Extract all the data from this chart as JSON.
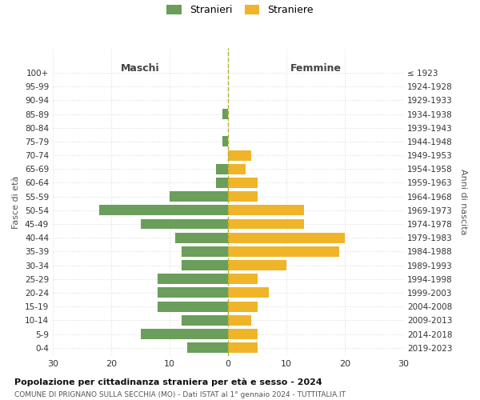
{
  "age_groups": [
    "0-4",
    "5-9",
    "10-14",
    "15-19",
    "20-24",
    "25-29",
    "30-34",
    "35-39",
    "40-44",
    "45-49",
    "50-54",
    "55-59",
    "60-64",
    "65-69",
    "70-74",
    "75-79",
    "80-84",
    "85-89",
    "90-94",
    "95-99",
    "100+"
  ],
  "birth_years": [
    "2019-2023",
    "2014-2018",
    "2009-2013",
    "2004-2008",
    "1999-2003",
    "1994-1998",
    "1989-1993",
    "1984-1988",
    "1979-1983",
    "1974-1978",
    "1969-1973",
    "1964-1968",
    "1959-1963",
    "1954-1958",
    "1949-1953",
    "1944-1948",
    "1939-1943",
    "1934-1938",
    "1929-1933",
    "1924-1928",
    "≤ 1923"
  ],
  "males": [
    7,
    15,
    8,
    12,
    12,
    12,
    8,
    8,
    9,
    15,
    22,
    10,
    2,
    2,
    0,
    1,
    0,
    1,
    0,
    0,
    0
  ],
  "females": [
    5,
    5,
    4,
    5,
    7,
    5,
    10,
    19,
    20,
    13,
    13,
    5,
    5,
    3,
    4,
    0,
    0,
    0,
    0,
    0,
    0
  ],
  "male_color": "#6a9e5a",
  "female_color": "#f0b429",
  "male_label": "Stranieri",
  "female_label": "Straniere",
  "title": "Popolazione per cittadinanza straniera per età e sesso - 2024",
  "subtitle": "COMUNE DI PRIGNANO SULLA SECCHIA (MO) - Dati ISTAT al 1° gennaio 2024 - TUTTITALIA.IT",
  "xlabel_left": "Maschi",
  "xlabel_right": "Femmine",
  "ylabel_left": "Fasce di età",
  "ylabel_right": "Anni di nascita",
  "xlim": 30,
  "background_color": "#ffffff",
  "grid_color": "#dddddd"
}
